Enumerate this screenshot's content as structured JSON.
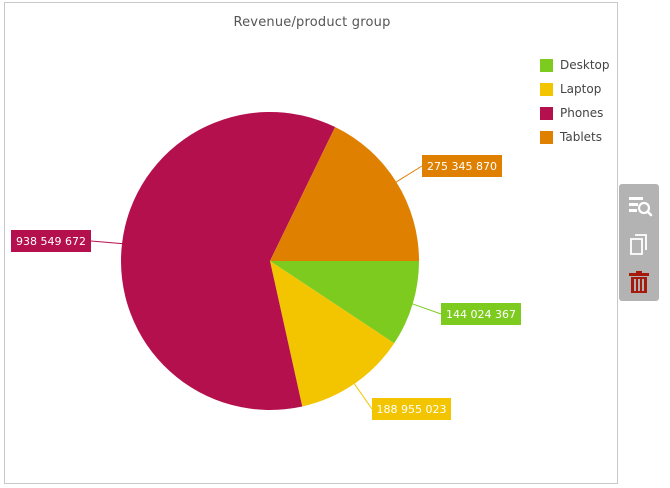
{
  "chart_data": {
    "type": "pie",
    "title": "Revenue/product group",
    "series": [
      {
        "name": "Desktop",
        "value": 144024367,
        "label": "144 024 367",
        "color": "#7ecb20"
      },
      {
        "name": "Laptop",
        "value": 188955023,
        "label": "188 955 023",
        "color": "#f2c500"
      },
      {
        "name": "Phones",
        "value": 938549672,
        "label": "938 549 672",
        "color": "#b5104e"
      },
      {
        "name": "Tablets",
        "value": 275345870,
        "label": "275 345 870",
        "color": "#e08000"
      }
    ],
    "legend_position": "top-right",
    "start_angle_deg": 0,
    "direction": "clockwise"
  },
  "toolbar": {
    "icons": [
      "inspect-data-icon",
      "copy-icon",
      "trash-icon"
    ],
    "trash_color": "#a61a0e",
    "icon_color": "#ffffff"
  }
}
